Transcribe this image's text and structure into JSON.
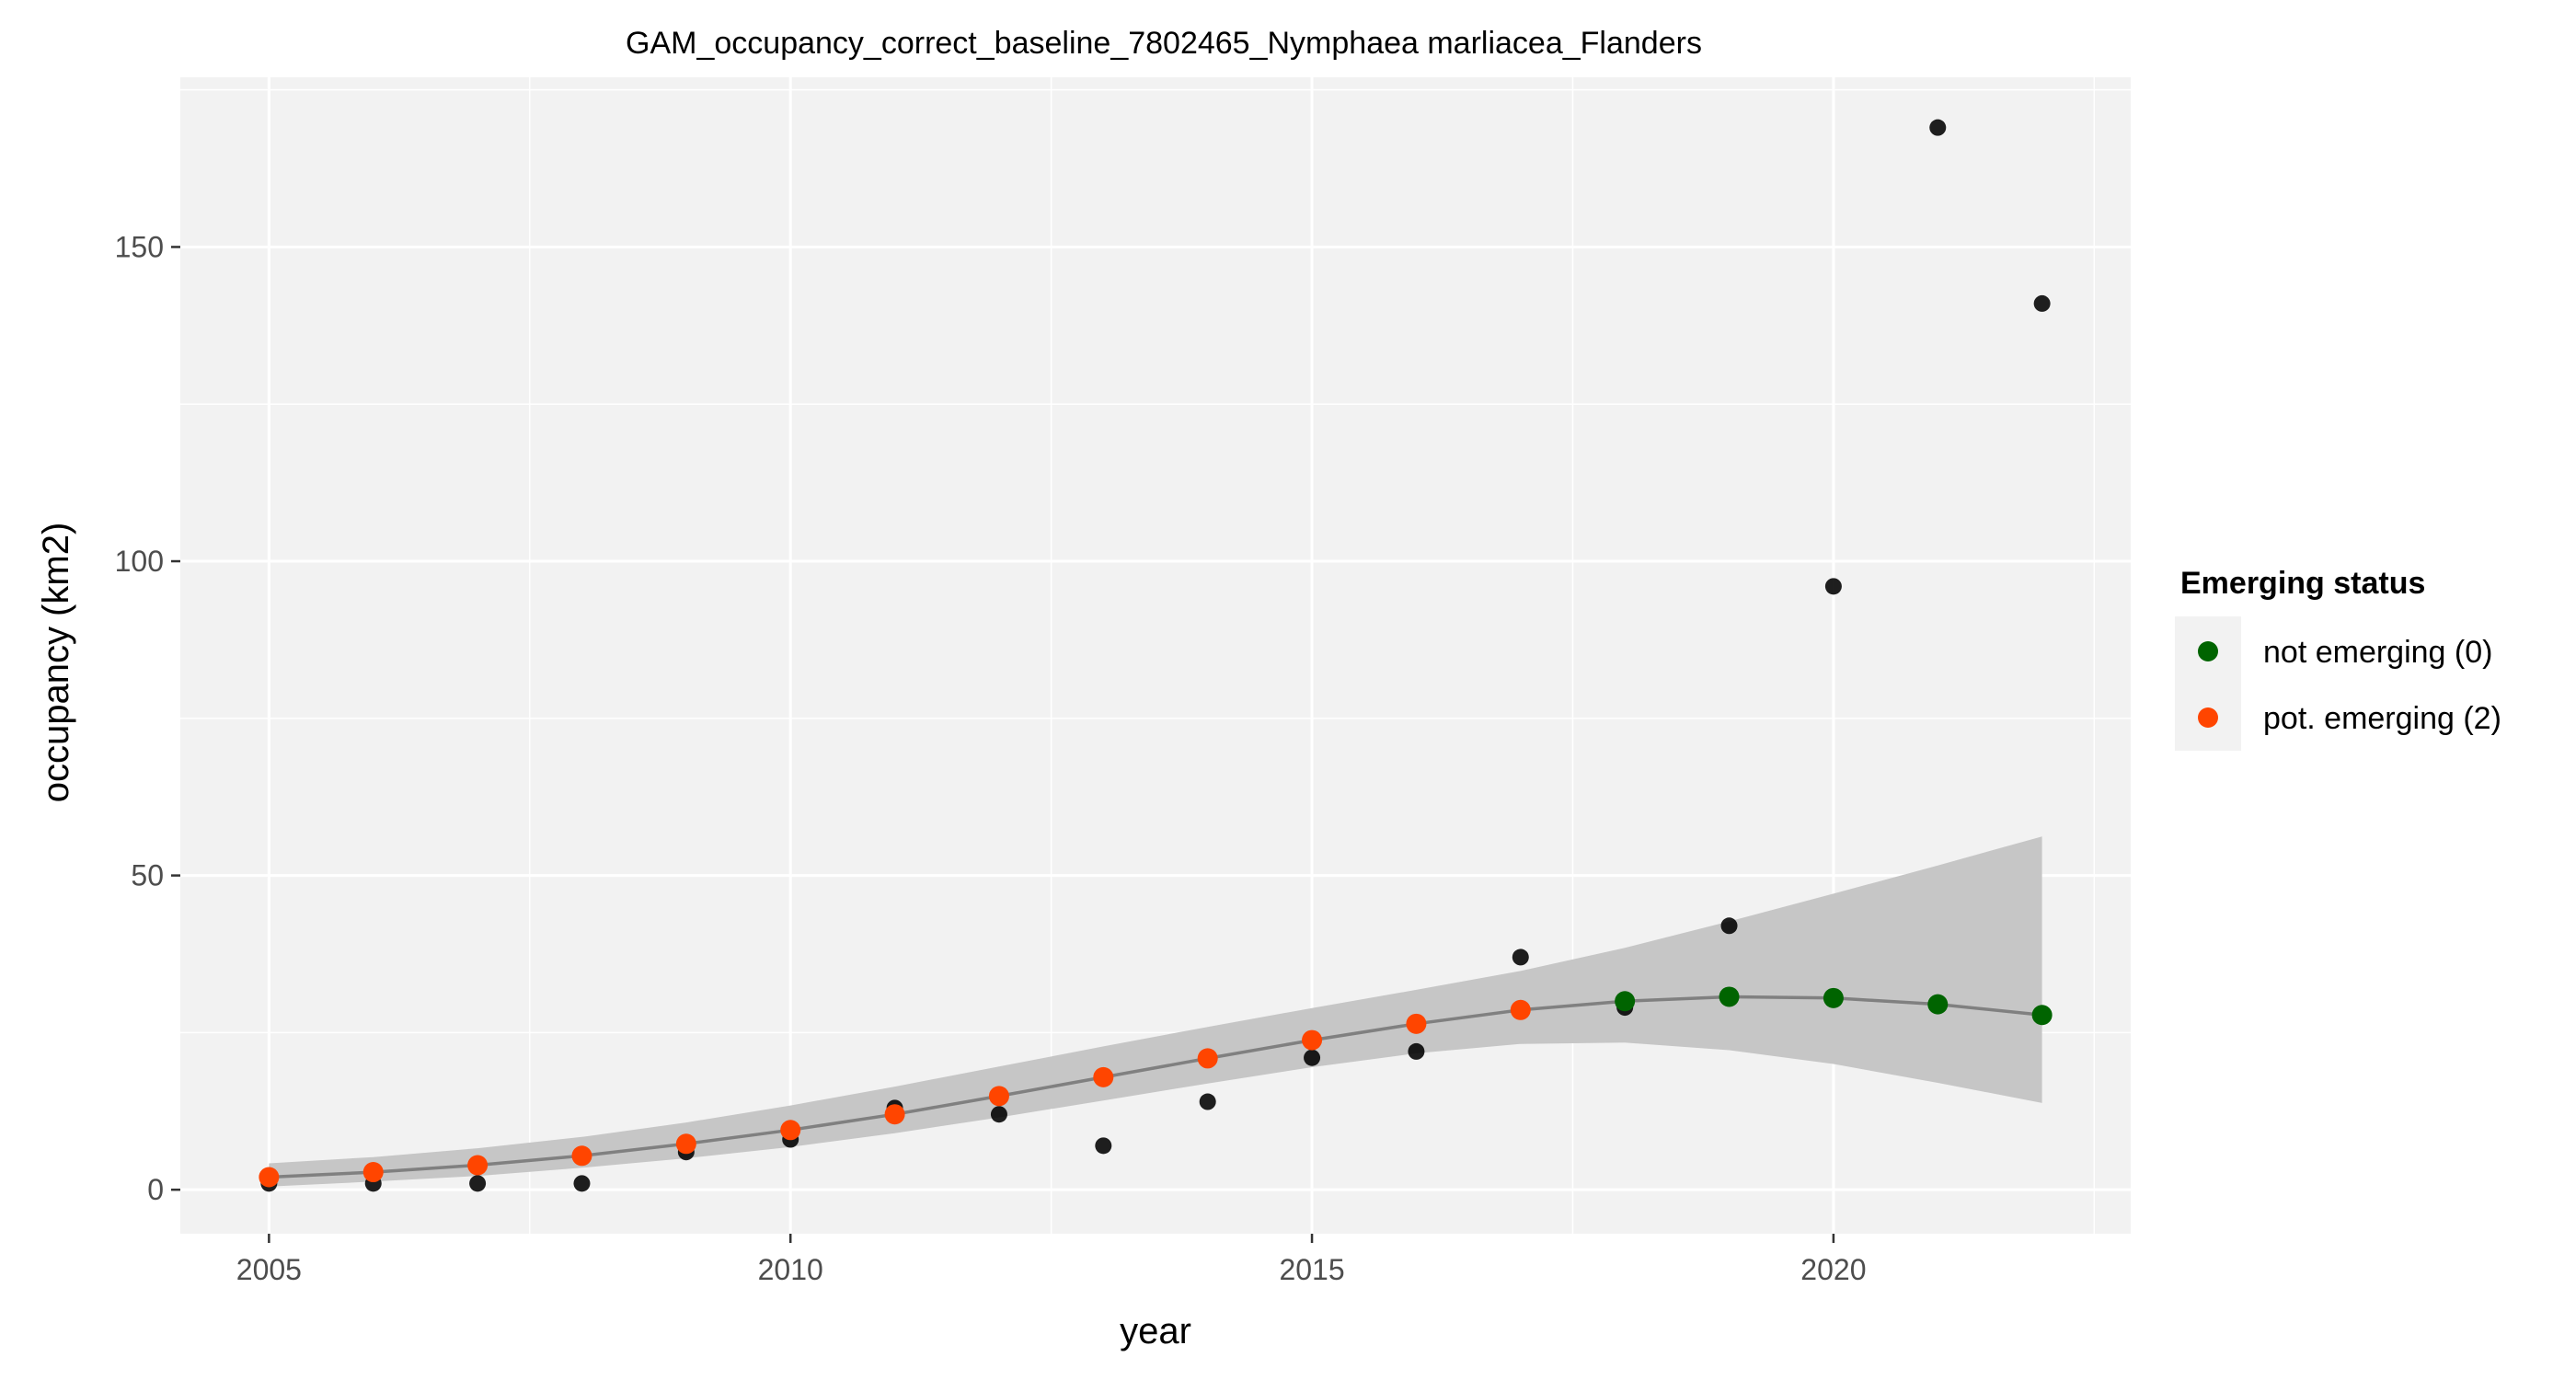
{
  "chart_data": {
    "type": "scatter",
    "title": "GAM_occupancy_correct_baseline_7802465_Nymphaea marliacea_Flanders",
    "xlabel": "year",
    "ylabel": "occupancy (km2)",
    "xlim": [
      2004.15,
      2022.85
    ],
    "ylim": [
      -7,
      177
    ],
    "x_ticks": [
      2005,
      2010,
      2015,
      2020
    ],
    "y_ticks": [
      0,
      50,
      100,
      150
    ],
    "grid": true,
    "legend": {
      "title": "Emerging status",
      "position": "right",
      "entries": [
        {
          "label": "not emerging (0)",
          "color": "#006400"
        },
        {
          "label": "pot. emerging (2)",
          "color": "#ff4500"
        }
      ]
    },
    "observed": {
      "color": "#000000",
      "x": [
        2005,
        2006,
        2007,
        2008,
        2009,
        2010,
        2011,
        2012,
        2013,
        2014,
        2015,
        2016,
        2017,
        2018,
        2019,
        2020,
        2021,
        2022
      ],
      "y": [
        1,
        1,
        1,
        1,
        6,
        8,
        13,
        12,
        7,
        14,
        21,
        22,
        37,
        29,
        42,
        96,
        169,
        141
      ]
    },
    "fit": {
      "line_color": "#808080",
      "band_color": "#c6c6c6",
      "x": [
        2005,
        2006,
        2007,
        2008,
        2009,
        2010,
        2011,
        2012,
        2013,
        2014,
        2015,
        2016,
        2017,
        2018,
        2019,
        2020,
        2021,
        2022
      ],
      "y": [
        2,
        2.8,
        3.9,
        5.4,
        7.3,
        9.5,
        12,
        14.9,
        17.9,
        20.9,
        23.8,
        26.4,
        28.6,
        30,
        30.7,
        30.5,
        29.5,
        27.8
      ],
      "lower": [
        0.5,
        1.3,
        2.2,
        3.5,
        5,
        6.8,
        9,
        11.5,
        14.2,
        16.9,
        19.5,
        21.7,
        23.2,
        23.4,
        22.2,
        20,
        17,
        13.8
      ],
      "upper": [
        4.2,
        5.2,
        6.6,
        8.4,
        10.7,
        13.4,
        16.4,
        19.6,
        22.8,
        25.9,
        28.9,
        31.8,
        34.8,
        38.5,
        42.7,
        47.1,
        51.6,
        56.2
      ],
      "status": [
        2,
        2,
        2,
        2,
        2,
        2,
        2,
        2,
        2,
        2,
        2,
        2,
        2,
        0,
        0,
        0,
        0,
        0
      ]
    }
  }
}
